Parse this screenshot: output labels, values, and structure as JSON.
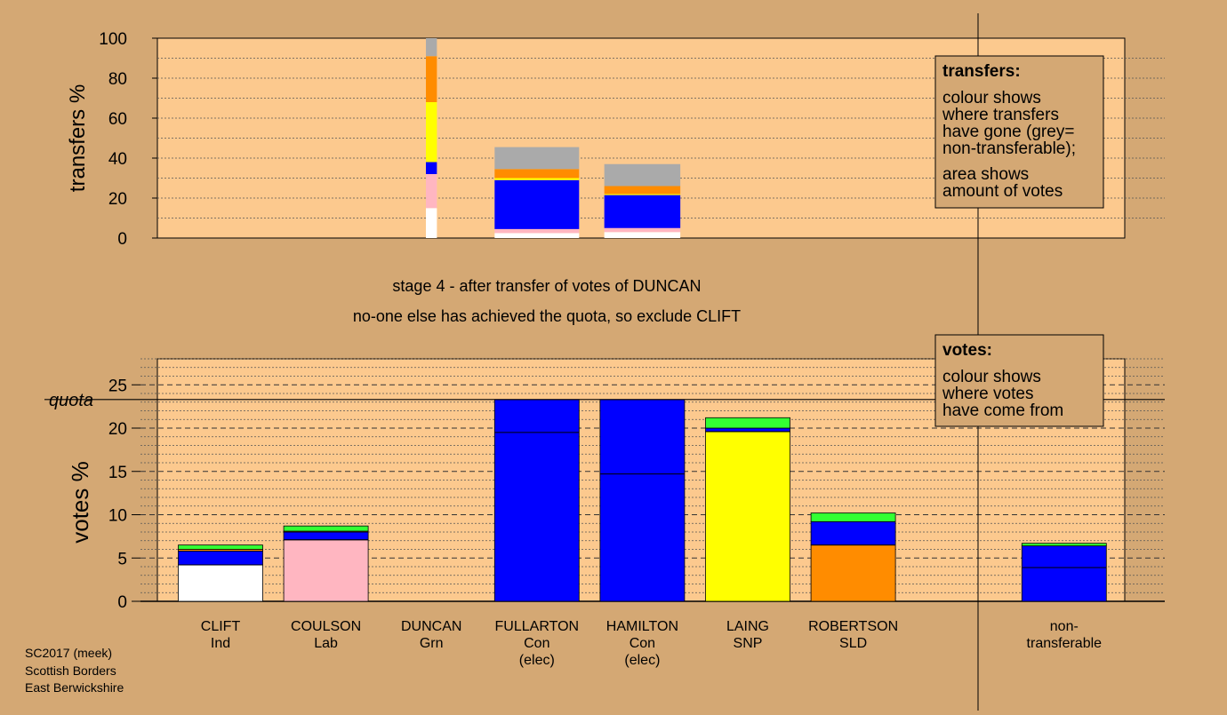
{
  "colors": {
    "background": "#d4a874",
    "plot_area": "#fcc98e",
    "Ind": "#ffffff",
    "Lab": "#ffb6c1",
    "Grn": "#33ff33",
    "Con": "#0000ff",
    "SNP": "#ffff00",
    "SLD": "#ff8c00",
    "nontransferable": "#aaaaaa"
  },
  "stage_text": {
    "line1": "stage 4 - after transfer of votes of DUNCAN",
    "line2": "no-one else has achieved the quota, so exclude CLIFT"
  },
  "footer": {
    "line1": "SC2017 (meek)",
    "line2": "Scottish Borders",
    "line3": "East Berwickshire"
  },
  "legend_transfers": {
    "title": "transfers:",
    "lines": [
      "colour shows",
      "where transfers",
      "have gone (grey=",
      "non-transferable);",
      "area shows",
      "amount of votes"
    ]
  },
  "legend_votes": {
    "title": "votes:",
    "lines": [
      "colour shows",
      "where votes",
      "have come from"
    ]
  },
  "chart_data": [
    {
      "type": "bar",
      "role": "transfers",
      "ylabel": "transfers %",
      "ylim": [
        0,
        100
      ],
      "yticks": [
        0,
        20,
        40,
        60,
        80,
        100
      ],
      "bars": [
        {
          "name": "DUNCAN",
          "slot": 2,
          "width_fraction": 0.13,
          "segments": [
            {
              "party": "Ind",
              "value": 15
            },
            {
              "party": "Lab",
              "value": 17
            },
            {
              "party": "Con",
              "value": 6
            },
            {
              "party": "SNP",
              "value": 30
            },
            {
              "party": "SLD",
              "value": 23
            },
            {
              "party": "nontransferable",
              "value": 9
            }
          ]
        },
        {
          "name": "FULLARTON",
          "slot": 3,
          "width_fraction": 1.0,
          "segments": [
            {
              "party": "Ind",
              "value": 2.5
            },
            {
              "party": "Lab",
              "value": 2.0
            },
            {
              "party": "Con",
              "value": 24.5
            },
            {
              "party": "SNP",
              "value": 1.0
            },
            {
              "party": "SLD",
              "value": 4.5
            },
            {
              "party": "nontransferable",
              "value": 11
            }
          ]
        },
        {
          "name": "HAMILTON",
          "slot": 4,
          "width_fraction": 0.9,
          "segments": [
            {
              "party": "Ind",
              "value": 3.0
            },
            {
              "party": "Lab",
              "value": 2.0
            },
            {
              "party": "Con",
              "value": 16.5
            },
            {
              "party": "SNP",
              "value": 0.5
            },
            {
              "party": "SLD",
              "value": 4.0
            },
            {
              "party": "nontransferable",
              "value": 11
            }
          ]
        }
      ]
    },
    {
      "type": "bar",
      "role": "votes",
      "ylabel": "votes %",
      "ylim": [
        0,
        28
      ],
      "yticks": [
        0,
        5,
        10,
        15,
        20,
        25
      ],
      "quota": 23.3,
      "quota_label": "quota",
      "categories": [
        {
          "name": "CLIFT",
          "party": "Ind",
          "status": ""
        },
        {
          "name": "COULSON",
          "party": "Lab",
          "status": ""
        },
        {
          "name": "DUNCAN",
          "party": "Grn",
          "status": ""
        },
        {
          "name": "FULLARTON",
          "party": "Con",
          "status": "(elec)"
        },
        {
          "name": "HAMILTON",
          "party": "Con",
          "status": "(elec)"
        },
        {
          "name": "LAING",
          "party": "SNP",
          "status": ""
        },
        {
          "name": "ROBERTSON",
          "party": "SLD",
          "status": ""
        },
        {
          "name": "",
          "party": "",
          "status": ""
        },
        {
          "name": "non-",
          "party": "transferable",
          "status": ""
        }
      ],
      "bars": [
        {
          "slot": 0,
          "first_pref": 4.2,
          "segments": [
            {
              "party": "Ind",
              "value": 4.2
            },
            {
              "party": "Con",
              "value": 1.6
            },
            {
              "party": "SLD",
              "value": 0.2
            },
            {
              "party": "Grn",
              "value": 0.5
            }
          ]
        },
        {
          "slot": 1,
          "first_pref": 7.1,
          "segments": [
            {
              "party": "Lab",
              "value": 7.1
            },
            {
              "party": "Con",
              "value": 0.9
            },
            {
              "party": "SLD",
              "value": 0.1
            },
            {
              "party": "Grn",
              "value": 0.6
            }
          ]
        },
        {
          "slot": 3,
          "first_pref": 19.5,
          "segments": [
            {
              "party": "Con",
              "value": 23.3
            }
          ]
        },
        {
          "slot": 4,
          "first_pref": 14.7,
          "segments": [
            {
              "party": "Con",
              "value": 23.3
            }
          ]
        },
        {
          "slot": 5,
          "first_pref": 19.6,
          "segments": [
            {
              "party": "SNP",
              "value": 19.6
            },
            {
              "party": "Con",
              "value": 0.4
            },
            {
              "party": "Grn",
              "value": 1.2
            }
          ]
        },
        {
          "slot": 6,
          "first_pref": 6.5,
          "segments": [
            {
              "party": "SLD",
              "value": 6.5
            },
            {
              "party": "Con",
              "value": 2.7
            },
            {
              "party": "Grn",
              "value": 1.0
            }
          ]
        },
        {
          "slot": 8,
          "first_pref": 3.9,
          "segments": [
            {
              "party": "Con",
              "value": 6.4
            },
            {
              "party": "Grn",
              "value": 0.3
            }
          ]
        }
      ]
    }
  ]
}
